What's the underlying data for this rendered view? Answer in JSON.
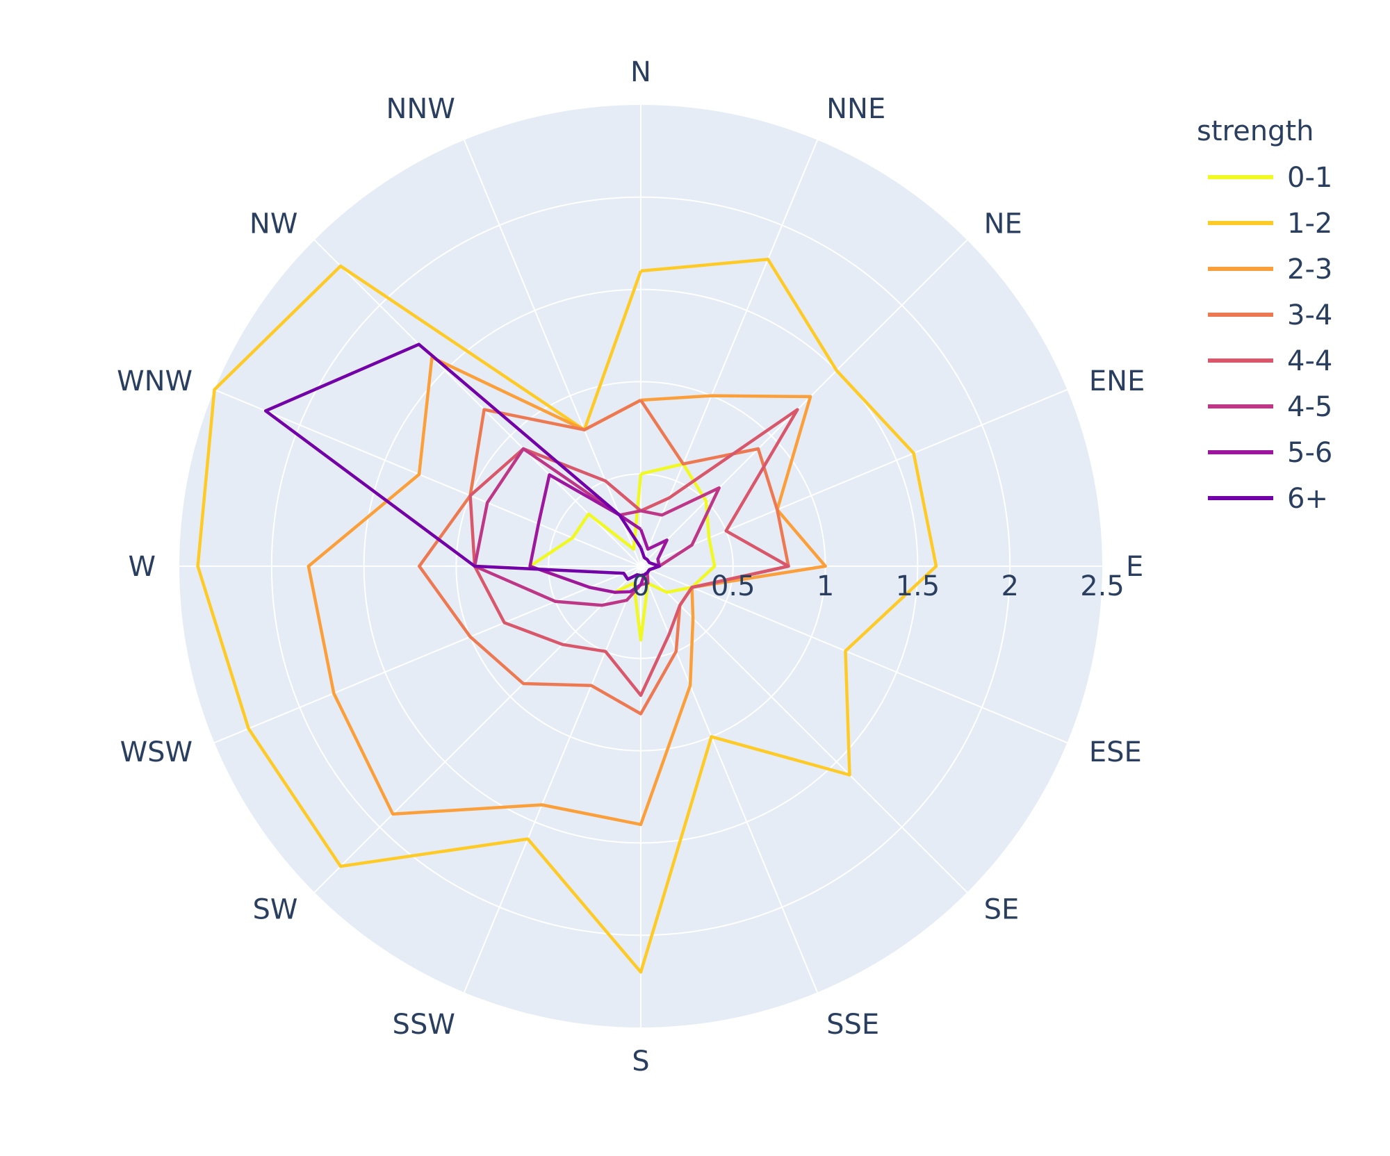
{
  "chart_data": {
    "type": "line",
    "subtype": "polar",
    "title": "",
    "direction_labels": [
      "N",
      "NNE",
      "NE",
      "ENE",
      "E",
      "ESE",
      "SE",
      "SSE",
      "S",
      "SSW",
      "SW",
      "WSW",
      "W",
      "WNW",
      "NW",
      "NNW"
    ],
    "radial_axis": {
      "range": [
        0,
        2.5
      ],
      "ticks": [
        0,
        0.5,
        1,
        1.5,
        2,
        2.5
      ],
      "tick_labels": [
        "0",
        "0.5",
        "1",
        "1.5",
        "2",
        "2.5"
      ]
    },
    "legend": {
      "title": "strength",
      "position": "top-right"
    },
    "background": "#e5ecf6",
    "grid": true,
    "series": [
      {
        "name": "0-1",
        "color": "#f0f921",
        "values": [
          0.5,
          0.6,
          0.5,
          0.4,
          0.4,
          0.3,
          0.2,
          0.1,
          0.4,
          0.1,
          0.2,
          0.3,
          0.6,
          0.4,
          0.4,
          0.1
        ]
      },
      {
        "name": "1-2",
        "color": "#fdca26",
        "values": [
          1.6,
          1.8,
          1.5,
          1.6,
          1.6,
          1.2,
          1.6,
          1.0,
          2.2,
          1.6,
          2.3,
          2.3,
          2.4,
          2.5,
          2.3,
          0.8
        ]
      },
      {
        "name": "2-3",
        "color": "#fb9f3a",
        "values": [
          0.9,
          1.0,
          1.3,
          0.8,
          1.0,
          0.3,
          0.4,
          0.7,
          1.4,
          1.4,
          1.9,
          1.8,
          1.8,
          1.3,
          1.6,
          0.8
        ]
      },
      {
        "name": "3-4",
        "color": "#ed7953",
        "values": [
          0.9,
          0.6,
          0.9,
          0.8,
          0.8,
          0.3,
          0.3,
          0.5,
          0.8,
          0.7,
          0.9,
          1.0,
          1.2,
          1.0,
          1.2,
          0.8
        ]
      },
      {
        "name": "4-4",
        "color": "#d8576b",
        "values": [
          0.3,
          0.4,
          1.2,
          0.5,
          0.8,
          0.3,
          0.3,
          0.4,
          0.7,
          0.5,
          0.6,
          0.8,
          0.9,
          1.0,
          0.9,
          0.5
        ]
      },
      {
        "name": "4-5",
        "color": "#bd3786",
        "values": [
          0.3,
          0.3,
          0.6,
          0.3,
          0.1,
          0.05,
          0.05,
          0.1,
          0.1,
          0.2,
          0.3,
          0.5,
          0.9,
          0.9,
          0.9,
          0.3
        ]
      },
      {
        "name": "5-6",
        "color": "#9c179e",
        "values": [
          0.2,
          0.1,
          0.2,
          0.1,
          0.1,
          0.05,
          0.05,
          0.05,
          0.1,
          0.15,
          0.2,
          0.3,
          0.6,
          0.6,
          0.7,
          0.3
        ]
      },
      {
        "name": "6+",
        "color": "#7201a8",
        "values": [
          0.1,
          0.05,
          0.05,
          0.05,
          0.1,
          0.05,
          0.05,
          0.05,
          0.05,
          0.05,
          0.1,
          0.1,
          0.9,
          2.2,
          1.7,
          0.3
        ]
      }
    ]
  }
}
